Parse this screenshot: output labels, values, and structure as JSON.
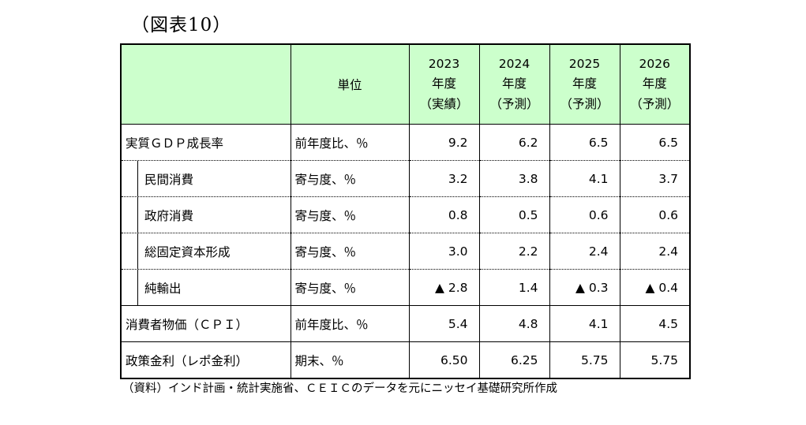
{
  "title": "（図表10）",
  "source_note": "（資料）インド計画・統計実施省、ＣＥＩＣのデータを元にニッセイ基礎研究所作成",
  "colors": {
    "header_bg": "#ccffcc",
    "border": "#000000",
    "background": "#ffffff"
  },
  "chart_data": {
    "type": "table",
    "title": "（図表10）",
    "unit_header": "単位",
    "columns": [
      {
        "lines": [
          "2023",
          "年度",
          "（実績）"
        ]
      },
      {
        "lines": [
          "2024",
          "年度",
          "（予測）"
        ]
      },
      {
        "lines": [
          "2025",
          "年度",
          "（予測）"
        ]
      },
      {
        "lines": [
          "2026",
          "年度",
          "（予測）"
        ]
      }
    ],
    "rows": [
      {
        "label": "実質ＧＤＰ成長率",
        "unit": "前年度比、％",
        "indent": false,
        "values": [
          "9.2",
          "6.2",
          "6.5",
          "6.5"
        ]
      },
      {
        "label": "民間消費",
        "unit": "寄与度、％",
        "indent": true,
        "values": [
          "3.2",
          "3.8",
          "4.1",
          "3.7"
        ]
      },
      {
        "label": "政府消費",
        "unit": "寄与度、％",
        "indent": true,
        "values": [
          "0.8",
          "0.5",
          "0.6",
          "0.6"
        ]
      },
      {
        "label": "総固定資本形成",
        "unit": "寄与度、％",
        "indent": true,
        "values": [
          "3.0",
          "2.2",
          "2.4",
          "2.4"
        ]
      },
      {
        "label": "純輸出",
        "unit": "寄与度、％",
        "indent": true,
        "values": [
          "▲ 2.8",
          "1.4",
          "▲ 0.3",
          "▲ 0.4"
        ]
      },
      {
        "label": "消費者物価（ＣＰＩ）",
        "unit": "前年度比、％",
        "indent": false,
        "values": [
          "5.4",
          "4.8",
          "4.1",
          "4.5"
        ]
      },
      {
        "label": "政策金利（レポ金利）",
        "unit": "期末、％",
        "indent": false,
        "values": [
          "6.50",
          "6.25",
          "5.75",
          "5.75"
        ]
      }
    ]
  }
}
